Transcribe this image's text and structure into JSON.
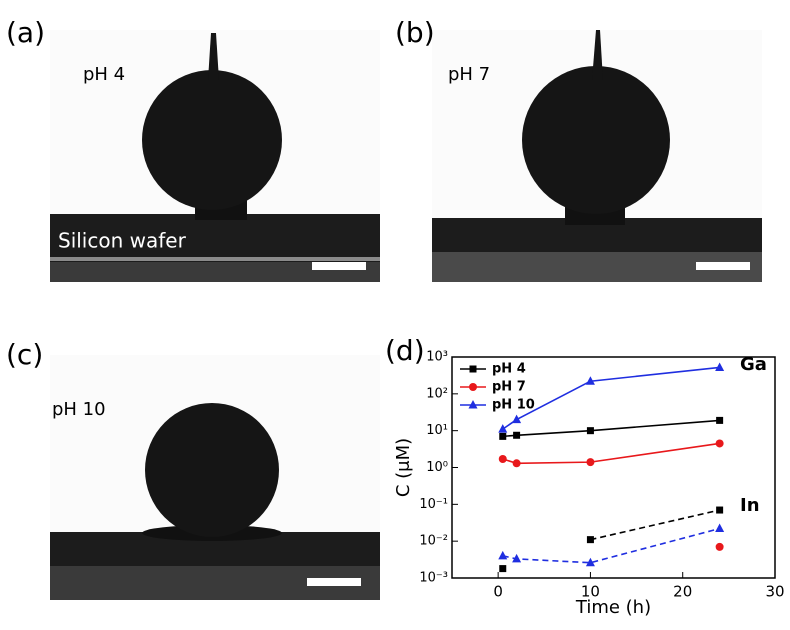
{
  "panels": [
    {
      "label": "(a)",
      "text": "pH 4",
      "substrate": "Silicon wafer"
    },
    {
      "label": "(b)",
      "text": "pH 7"
    },
    {
      "label": "(c)",
      "text": "pH 10"
    }
  ],
  "chart_data": {
    "type": "line",
    "label": "(d)",
    "x_label": "Time (h)",
    "y_label": "C (μM)",
    "x": [
      0.5,
      2,
      10,
      24
    ],
    "series": [
      {
        "name": "pH 4",
        "color": "#000000",
        "marker": "square",
        "values": [
          7,
          7.5,
          10,
          19
        ],
        "in_values": [
          0.0018,
          null,
          0.011,
          0.07
        ]
      },
      {
        "name": "pH 7",
        "color": "#e8181b",
        "marker": "circle",
        "values": [
          1.7,
          1.3,
          1.4,
          4.5
        ],
        "in_values": [
          null,
          null,
          null,
          0.007
        ]
      },
      {
        "name": "pH 10",
        "color": "#1f2ee0",
        "marker": "triangle",
        "values": [
          11,
          20,
          220,
          520
        ],
        "in_values": [
          0.004,
          0.0033,
          0.0026,
          0.022
        ]
      }
    ],
    "annotations": [
      "Ga",
      "In"
    ],
    "xlim": [
      -5,
      30
    ],
    "xticks": [
      0,
      10,
      20,
      30
    ],
    "ylim": [
      0.001,
      1000
    ],
    "yticks": [
      {
        "value": 0.001,
        "label": "10⁻³"
      },
      {
        "value": 0.01,
        "label": "10⁻²"
      },
      {
        "value": 0.1,
        "label": "10⁻¹"
      },
      {
        "value": 1,
        "label": "10⁰"
      },
      {
        "value": 10,
        "label": "10¹"
      },
      {
        "value": 100,
        "label": "10²"
      },
      {
        "value": 1000,
        "label": "10³"
      }
    ],
    "log_y": true,
    "legend": "upper left"
  }
}
